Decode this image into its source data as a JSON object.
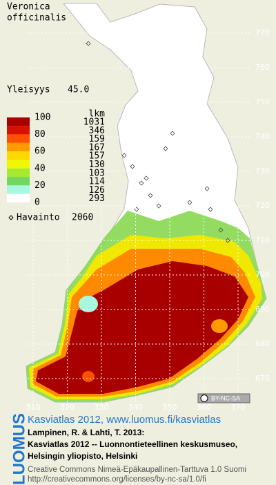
{
  "title": [
    "Veronica",
    "officinalis"
  ],
  "frequency": {
    "label": "Yleisyys",
    "value": "45.0"
  },
  "legend": {
    "levels": [
      100,
      80,
      60,
      40,
      20,
      0
    ],
    "count_header": "lkm",
    "counts": [
      1031,
      346,
      159,
      167,
      157,
      130,
      103,
      114,
      126,
      293
    ],
    "colors": [
      "#a80000",
      "#d81000",
      "#ff5000",
      "#ff9a00",
      "#ffd800",
      "#f0f800",
      "#a8e830",
      "#70d860",
      "#a8f8e0",
      "#ffffff"
    ]
  },
  "observation": {
    "label": "Havainto",
    "count": 2060
  },
  "grid": {
    "northing": [
      770,
      760,
      750,
      740,
      730,
      720,
      710,
      700,
      690,
      680,
      670
    ],
    "easting": [
      310,
      320,
      330,
      340,
      350,
      360,
      370
    ]
  },
  "license_badge": "BY-NC-SA",
  "footer": {
    "brand": "LUOMUS",
    "atlas": "Kasviatlas 2012, www.luomus.fi/kasviatlas",
    "citation": [
      "Lampinen, R. & Lahti, T. 2013:",
      "Kasviatlas 2012 -- Luonnontieteellinen keskusmuseo,",
      "Helsingin yliopisto, Helsinki"
    ],
    "license": [
      "Creative Commons Nimeä-Epäkaupallinen-Tarttuva 1.0 Suomi",
      "http://creativecommons.org/licenses/by-nc-sa/1.0/fi"
    ]
  }
}
